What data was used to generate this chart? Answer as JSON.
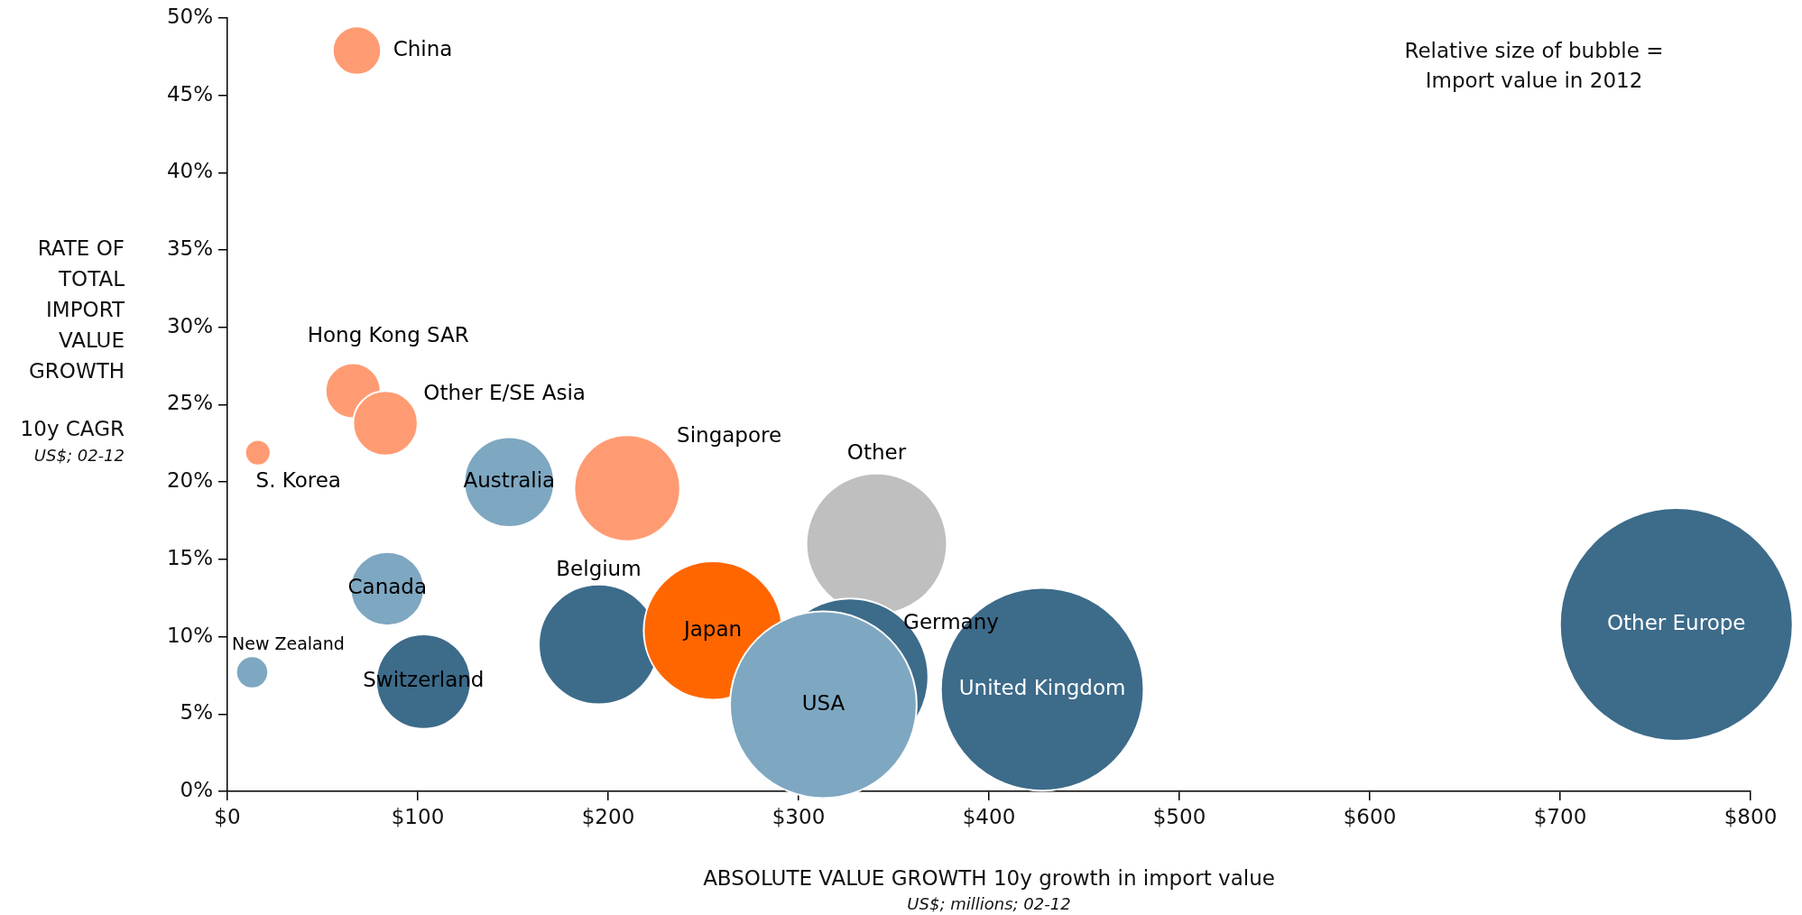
{
  "chart_data": {
    "type": "bubble",
    "xlabel": "ABSOLUTE VALUE GROWTH 10y growth in import value",
    "ylabel": "RATE OF TOTAL IMPORT VALUE GROWTH",
    "annotations": [
      "Relative size of bubble = Import value in 2012",
      "10y CAGR",
      "US$; 02-12",
      "US$; millions; 02-12"
    ],
    "xlim": [
      0,
      800
    ],
    "ylim": [
      0,
      50
    ],
    "xticks": [
      {
        "value": 0,
        "label": "$0"
      },
      {
        "value": 100,
        "label": "$100"
      },
      {
        "value": 200,
        "label": "$200"
      },
      {
        "value": 300,
        "label": "$300"
      },
      {
        "value": 400,
        "label": "$400"
      },
      {
        "value": 500,
        "label": "$500"
      },
      {
        "value": 600,
        "label": "$600"
      },
      {
        "value": 700,
        "label": "$700"
      },
      {
        "value": 800,
        "label": "$800"
      }
    ],
    "yticks": [
      {
        "value": 0,
        "label": "0%"
      },
      {
        "value": 5,
        "label": "5%"
      },
      {
        "value": 10,
        "label": "10%"
      },
      {
        "value": 15,
        "label": "15%"
      },
      {
        "value": 20,
        "label": "20%"
      },
      {
        "value": 25,
        "label": "25%"
      },
      {
        "value": 30,
        "label": "30%"
      },
      {
        "value": 35,
        "label": "35%"
      },
      {
        "value": 40,
        "label": "40%"
      },
      {
        "value": 45,
        "label": "45%"
      },
      {
        "value": 50,
        "label": "50%"
      }
    ],
    "legend": false,
    "series": [
      {
        "name": "China",
        "color": "#ff9b73",
        "x": [
          68
        ],
        "values": [
          47.9
        ],
        "sizes": [
          0.043
        ]
      },
      {
        "name": "Hong Kong SAR",
        "color": "#ff9b73",
        "x": [
          66
        ],
        "values": [
          25.9
        ],
        "sizes": [
          0.056
        ]
      },
      {
        "name": "Other E/SE Asia",
        "color": "#ff9b73",
        "x": [
          83
        ],
        "values": [
          23.8
        ],
        "sizes": [
          0.077
        ]
      },
      {
        "name": "S. Korea",
        "color": "#ff9b73",
        "x": [
          16
        ],
        "values": [
          21.9
        ],
        "sizes": [
          0.012
        ]
      },
      {
        "name": "Australia",
        "color": "#7ea7c1",
        "x": [
          148
        ],
        "values": [
          20
        ],
        "sizes": [
          0.149
        ]
      },
      {
        "name": "Singapore",
        "color": "#ff9b73",
        "x": [
          210
        ],
        "values": [
          19.6
        ],
        "sizes": [
          0.207
        ]
      },
      {
        "name": "Other",
        "color": "#bfbfbf",
        "x": [
          341
        ],
        "values": [
          16
        ],
        "sizes": [
          0.365
        ]
      },
      {
        "name": "Canada",
        "color": "#7ea7c1",
        "x": [
          84
        ],
        "values": [
          13.1
        ],
        "sizes": [
          0.1
        ]
      },
      {
        "name": "New Zealand",
        "color": "#7ea7c1",
        "x": [
          13
        ],
        "values": [
          7.7
        ],
        "sizes": [
          0.019
        ]
      },
      {
        "name": "Switzerland",
        "color": "#3d6b8a",
        "x": [
          103
        ],
        "values": [
          7.1
        ],
        "sizes": [
          0.165
        ]
      },
      {
        "name": "Belgium",
        "color": "#3d6b8a",
        "x": [
          195
        ],
        "values": [
          9.5
        ],
        "sizes": [
          0.265
        ]
      },
      {
        "name": "Germany",
        "color": "#3d6b8a",
        "x": [
          327
        ],
        "values": [
          7.4
        ],
        "sizes": [
          0.453
        ]
      },
      {
        "name": "Japan",
        "color": "#ff6600",
        "x": [
          255
        ],
        "values": [
          10.4
        ],
        "sizes": [
          0.353
        ]
      },
      {
        "name": "USA",
        "color": "#7ea7c1",
        "x": [
          313
        ],
        "values": [
          5.6
        ],
        "sizes": [
          0.643
        ]
      },
      {
        "name": "United Kingdom",
        "color": "#3d6b8a",
        "x": [
          428
        ],
        "values": [
          6.6
        ],
        "sizes": [
          0.759
        ]
      },
      {
        "name": "Other Europe",
        "color": "#3d6b8a",
        "x": [
          761
        ],
        "values": [
          10.8
        ],
        "sizes": [
          1
        ]
      }
    ]
  }
}
